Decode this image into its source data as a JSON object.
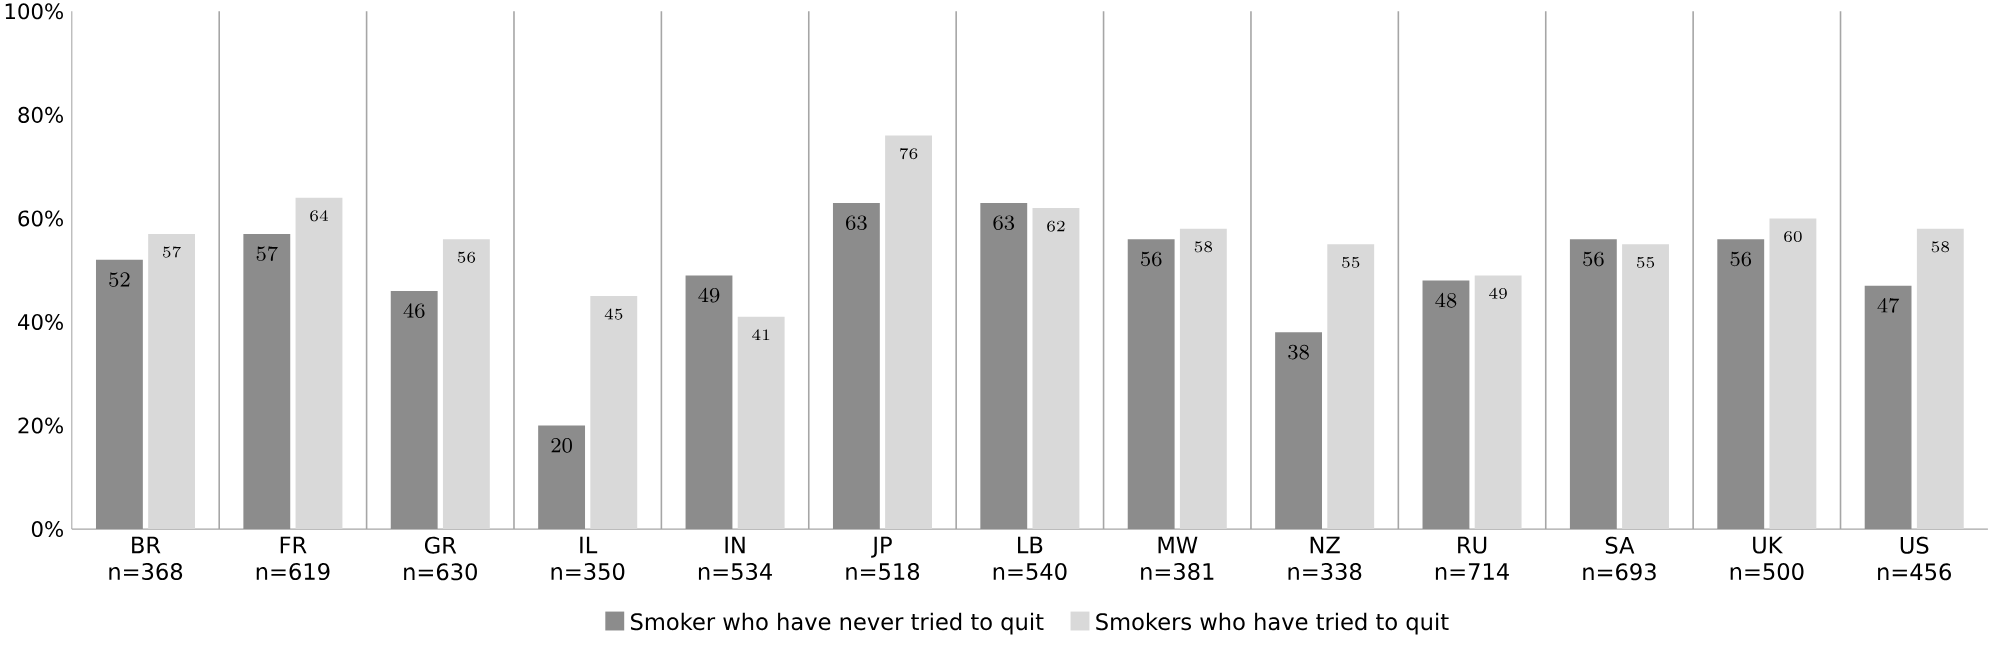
{
  "chart_data": {
    "type": "bar",
    "categories": [
      "BR n=368",
      "FR n=619",
      "GR n=630",
      "IL n=350",
      "IN n=534",
      "JP n=518",
      "LB n=540",
      "MW n=381",
      "NZ n=338",
      "RU n=714",
      "SA n=693",
      "UK n=500",
      "US n=456"
    ],
    "series": [
      {
        "name": "Smoker who have never tried to quit",
        "color": "#8c8c8c",
        "values": [
          52,
          57,
          46,
          20,
          49,
          63,
          63,
          56,
          38,
          48,
          56,
          56,
          47
        ]
      },
      {
        "name": "Smokers who have tried to quit",
        "color": "#d9d9d9",
        "values": [
          57,
          64,
          56,
          45,
          41,
          76,
          62,
          58,
          55,
          49,
          55,
          60,
          58
        ]
      }
    ],
    "ylim": [
      0,
      100
    ],
    "yticks": [
      {
        "value": 0,
        "label": "0%"
      },
      {
        "value": 20,
        "label": "20%"
      },
      {
        "value": 40,
        "label": "40%"
      },
      {
        "value": 60,
        "label": "60%"
      },
      {
        "value": 80,
        "label": "80%"
      },
      {
        "value": 100,
        "label": "100%"
      }
    ],
    "data_labels": true,
    "grid": "x",
    "legend": "bottom"
  }
}
